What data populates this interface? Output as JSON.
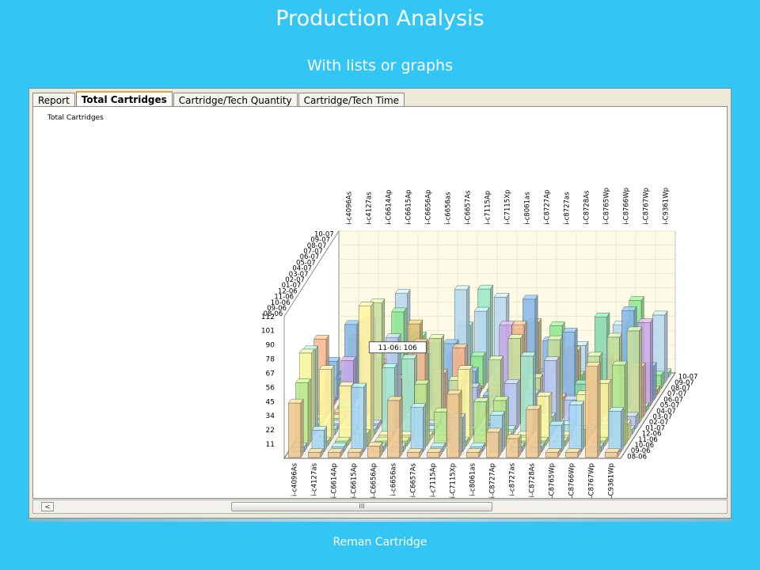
{
  "slide": {
    "title": "Production Analysis",
    "subtitle": "With lists or graphs",
    "footer": "Reman Cartridge"
  },
  "tabs": [
    {
      "label": "Report",
      "active": false
    },
    {
      "label": "Total Cartridges",
      "active": true
    },
    {
      "label": "Cartridge/Tech Quantity",
      "active": false
    },
    {
      "label": "Cartridge/Tech Time",
      "active": false
    }
  ],
  "panel": {
    "chart_title": "Total Cartridges",
    "scroll_left": "<",
    "scroll_thumb": "III"
  },
  "chart_data": {
    "type": "bar",
    "title": "Total Cartridges",
    "categories": [
      "i-c4096As",
      "i-c4127as",
      "i-C6614Ap",
      "i-C6615Ap",
      "i-C6656Ap",
      "i-c6656as",
      "i-C6657As",
      "i-c7115Ap",
      "i-C7115Xp",
      "i-c8061as",
      "i-C8727Ap",
      "i-c8727as",
      "i-C8728As",
      "i-C8765Wp",
      "i-C8766Wp",
      "i-C8767Wp",
      "i-C9361Wp"
    ],
    "months": [
      "08-06",
      "09-06",
      "10-06",
      "11-06",
      "12-06",
      "01-07",
      "02-07",
      "03-07",
      "04-07",
      "05-07",
      "06-07",
      "07-07",
      "08-07",
      "09-07",
      "10-07"
    ],
    "y_ticks": [
      "11",
      "22",
      "34",
      "45",
      "56",
      "67",
      "78",
      "90",
      "101",
      "112"
    ],
    "ylim": [
      0,
      112
    ],
    "tooltip": "11-06: 106",
    "month_colors": [
      "#F0C890",
      "#A8D8F8",
      "#B8E890",
      "#FFF8A0",
      "#A8E8D0",
      "#B8C8F8",
      "#C8E0A0",
      "#F8B890",
      "#88D8B0",
      "#C8A8E8",
      "#88B8E8",
      "#D8C078",
      "#90E890",
      "#B8D8F0",
      "#98E8C8"
    ]
  }
}
